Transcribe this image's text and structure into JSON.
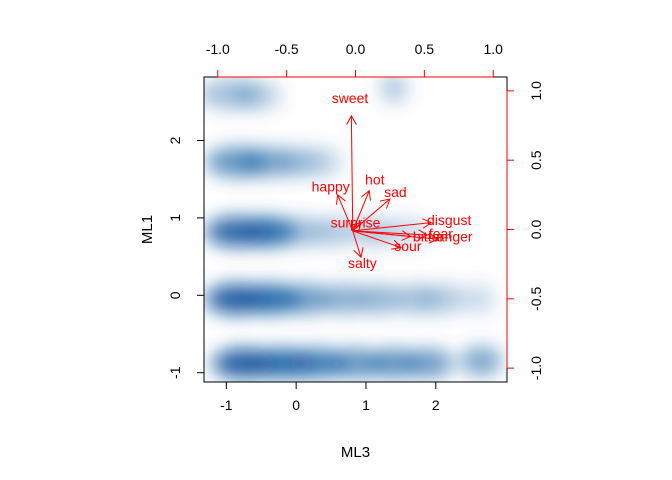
{
  "chart_data": {
    "type": "biplot",
    "xlabel": "ML3",
    "ylabel": "ML1",
    "bottom_axis": {
      "ticks": [
        -1,
        0,
        1,
        2
      ],
      "labels": [
        "-1",
        "0",
        "1",
        "2"
      ],
      "range": [
        -1.32,
        3.02
      ]
    },
    "left_axis": {
      "ticks": [
        -1,
        0,
        1,
        2
      ],
      "labels": [
        "-1",
        "0",
        "1",
        "2"
      ],
      "range": [
        -1.12,
        2.82
      ]
    },
    "top_axis": {
      "ticks": [
        -1.0,
        -0.5,
        0.0,
        0.5,
        1.0
      ],
      "labels": [
        "-1.0",
        "-0.5",
        "0.0",
        "0.5",
        "1.0"
      ],
      "range": [
        -1.1,
        1.1
      ],
      "color": "#ff0000"
    },
    "right_axis": {
      "ticks": [
        -1.0,
        -0.5,
        0.0,
        0.5,
        1.0
      ],
      "labels": [
        "-1.0",
        "-0.5",
        "0.0",
        "0.5",
        "1.0"
      ],
      "range": [
        -1.1,
        1.1
      ],
      "color": "#ff0000"
    },
    "density_blobs": [
      {
        "x": -0.95,
        "y": 2.6,
        "w": 0.45,
        "s": 0.35
      },
      {
        "x": -0.55,
        "y": 2.58,
        "w": 0.35,
        "s": 0.25
      },
      {
        "x": 1.4,
        "y": 2.68,
        "w": 0.2,
        "s": 0.3
      },
      {
        "x": -0.85,
        "y": 1.72,
        "w": 0.45,
        "s": 0.6
      },
      {
        "x": -0.4,
        "y": 1.72,
        "w": 0.4,
        "s": 0.45
      },
      {
        "x": 0.0,
        "y": 1.72,
        "w": 0.3,
        "s": 0.3
      },
      {
        "x": 0.35,
        "y": 1.72,
        "w": 0.3,
        "s": 0.25
      },
      {
        "x": -0.85,
        "y": 0.82,
        "w": 0.45,
        "s": 0.85
      },
      {
        "x": -0.4,
        "y": 0.82,
        "w": 0.4,
        "s": 0.8
      },
      {
        "x": 0.1,
        "y": 0.82,
        "w": 0.3,
        "s": 0.35
      },
      {
        "x": 0.55,
        "y": 0.82,
        "w": 0.3,
        "s": 0.3
      },
      {
        "x": 1.1,
        "y": 0.82,
        "w": 0.3,
        "s": 0.3
      },
      {
        "x": 1.6,
        "y": 0.82,
        "w": 0.3,
        "s": 0.2
      },
      {
        "x": -0.85,
        "y": -0.05,
        "w": 0.45,
        "s": 0.9
      },
      {
        "x": -0.35,
        "y": -0.05,
        "w": 0.4,
        "s": 0.8
      },
      {
        "x": 0.15,
        "y": -0.05,
        "w": 0.35,
        "s": 0.55
      },
      {
        "x": 0.7,
        "y": -0.05,
        "w": 0.35,
        "s": 0.45
      },
      {
        "x": 1.2,
        "y": -0.05,
        "w": 0.3,
        "s": 0.4
      },
      {
        "x": 1.7,
        "y": -0.05,
        "w": 0.3,
        "s": 0.35
      },
      {
        "x": 2.1,
        "y": -0.05,
        "w": 0.3,
        "s": 0.3
      },
      {
        "x": 2.6,
        "y": -0.05,
        "w": 0.25,
        "s": 0.2
      },
      {
        "x": -0.75,
        "y": -0.88,
        "w": 0.45,
        "s": 0.9
      },
      {
        "x": -0.2,
        "y": -0.88,
        "w": 0.45,
        "s": 0.8
      },
      {
        "x": 0.3,
        "y": -0.88,
        "w": 0.4,
        "s": 0.7
      },
      {
        "x": 0.85,
        "y": -0.88,
        "w": 0.4,
        "s": 0.6
      },
      {
        "x": 1.4,
        "y": -0.88,
        "w": 0.35,
        "s": 0.6
      },
      {
        "x": 1.9,
        "y": -0.88,
        "w": 0.35,
        "s": 0.55
      },
      {
        "x": 2.65,
        "y": -0.85,
        "w": 0.3,
        "s": 0.5
      }
    ],
    "loadings_origin": [
      -0.02,
      -0.01
    ],
    "loadings": [
      {
        "label": "sweet",
        "x": -0.03,
        "y": 0.82
      },
      {
        "label": "hot",
        "x": 0.1,
        "y": 0.28
      },
      {
        "label": "happy",
        "x": -0.13,
        "y": 0.25
      },
      {
        "label": "sad",
        "x": 0.25,
        "y": 0.22
      },
      {
        "label": "surprise",
        "x": 0.04,
        "y": 0.05
      },
      {
        "label": "disgust",
        "x": 0.55,
        "y": 0.05
      },
      {
        "label": "fear",
        "x": 0.52,
        "y": -0.04
      },
      {
        "label": "anger",
        "x": 0.6,
        "y": -0.07
      },
      {
        "label": "bitter",
        "x": 0.4,
        "y": -0.05
      },
      {
        "label": "sour",
        "x": 0.33,
        "y": -0.13
      },
      {
        "label": "salty",
        "x": 0.04,
        "y": -0.2
      }
    ],
    "loading_label_positions": {
      "sweet": [
        -0.04,
        0.95
      ],
      "hot": [
        0.14,
        0.36
      ],
      "happy": [
        -0.18,
        0.31
      ],
      "sad": [
        0.29,
        0.27
      ],
      "surprise": [
        0.0,
        0.05
      ],
      "disgust": [
        0.68,
        0.07
      ],
      "fear": [
        0.62,
        -0.03
      ],
      "anger": [
        0.72,
        -0.05
      ],
      "bitter": [
        0.53,
        -0.05
      ],
      "sour": [
        0.38,
        -0.12
      ],
      "salty": [
        0.05,
        -0.24
      ]
    },
    "colors": {
      "loadings": "#ff0000",
      "density": "#08519c",
      "axes": "#000000"
    }
  }
}
